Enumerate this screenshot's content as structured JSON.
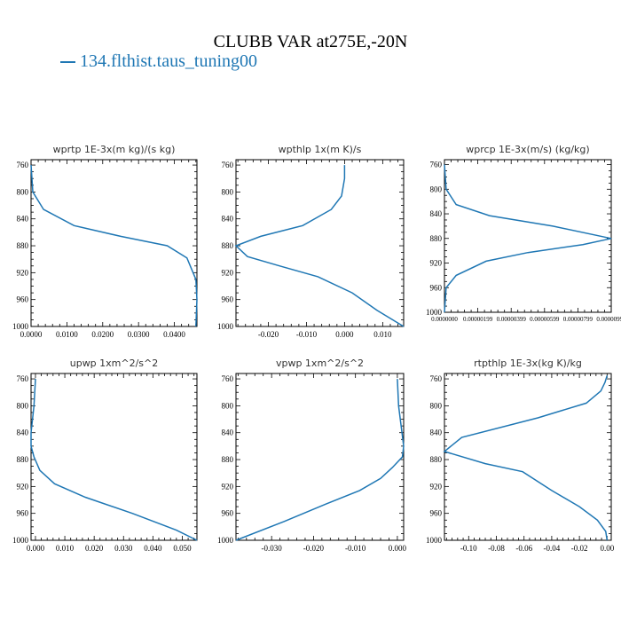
{
  "title": "CLUBB VAR at275E,-20N",
  "legend": {
    "label": "134.flthist.taus_tuning00",
    "color": "#1f77b4"
  },
  "chart_data": [
    {
      "type": "line",
      "title": "wprtp  1E-3x(m kg)/(s kg)",
      "ylim": [
        1000,
        752
      ],
      "y_ticks": [
        760,
        800,
        840,
        880,
        920,
        960,
        1000
      ],
      "y_tick_labels": [
        "760",
        "800",
        "840",
        "880",
        "920",
        "960",
        "1000"
      ],
      "xlim": [
        0.0,
        0.0463
      ],
      "x_ticks": [
        0.0,
        0.01,
        0.02,
        0.03,
        0.04
      ],
      "x_tick_labels": [
        "0.0000",
        "0.0100",
        "0.0200",
        "0.0300",
        "0.0400"
      ],
      "series": [
        {
          "color": "#1f77b4",
          "x": [
            0.0,
            0.0005,
            0.0035,
            0.012,
            0.025,
            0.038,
            0.0435,
            0.046,
            0.0463,
            0.046
          ],
          "y": [
            760,
            800,
            826,
            850,
            866,
            880,
            898,
            930,
            960,
            1000
          ]
        }
      ]
    },
    {
      "type": "line",
      "title": "wpthlp  1x(m K)/s",
      "ylim": [
        1000,
        752
      ],
      "y_ticks": [
        760,
        800,
        840,
        880,
        920,
        960,
        1000
      ],
      "y_tick_labels": [
        "760",
        "800",
        "840",
        "880",
        "920",
        "960",
        "1000"
      ],
      "xlim": [
        -0.0285,
        0.0155
      ],
      "x_ticks": [
        -0.02,
        -0.01,
        0.0,
        0.01
      ],
      "x_tick_labels": [
        "-0.020",
        "-0.010",
        "0.000",
        "0.010"
      ],
      "series": [
        {
          "color": "#1f77b4",
          "x": [
            0.0,
            0.0,
            -0.0008,
            -0.0035,
            -0.011,
            -0.022,
            -0.0285,
            -0.0255,
            -0.017,
            -0.007,
            0.002,
            0.0085,
            0.0155
          ],
          "y": [
            760,
            780,
            806,
            826,
            850,
            866,
            880,
            896,
            910,
            926,
            950,
            976,
            1000
          ]
        }
      ]
    },
    {
      "type": "line",
      "title": "wprcp  1E-3x(m/s) (kg/kg)",
      "ylim": [
        1000,
        752
      ],
      "y_ticks": [
        760,
        800,
        840,
        880,
        920,
        960,
        1000
      ],
      "y_tick_labels": [
        "760",
        "800",
        "840",
        "880",
        "920",
        "960",
        "1000"
      ],
      "xlim": [
        0.0,
        1e-05
      ],
      "x_ticks": [
        0.0,
        2e-06,
        4e-06,
        6e-06,
        8e-06,
        1e-05
      ],
      "x_tick_labels": [
        "0.0000000",
        "0.00000199",
        "0.00000399",
        "0.00000599",
        "0.00000799",
        "0.00000999"
      ],
      "series": [
        {
          "color": "#1f77b4",
          "x": [
            0.0,
            1e-07,
            7e-07,
            2.7e-06,
            6.5e-06,
            1e-05,
            8.3e-06,
            5e-06,
            2.5e-06,
            7e-07,
            1e-07,
            0.0
          ],
          "y": [
            760,
            800,
            825,
            843,
            860,
            880,
            890,
            903,
            917,
            940,
            960,
            1000
          ]
        }
      ]
    },
    {
      "type": "line",
      "title": "upwp  1xm^2/s^2",
      "ylim": [
        1000,
        752
      ],
      "y_ticks": [
        760,
        800,
        840,
        880,
        920,
        960,
        1000
      ],
      "y_tick_labels": [
        "760",
        "800",
        "840",
        "880",
        "920",
        "960",
        "1000"
      ],
      "xlim": [
        -0.0015,
        0.055
      ],
      "x_ticks": [
        0.0,
        0.01,
        0.02,
        0.03,
        0.04,
        0.05
      ],
      "x_tick_labels": [
        "0.000",
        "0.010",
        "0.020",
        "0.030",
        "0.040",
        "0.050"
      ],
      "series": [
        {
          "color": "#1f77b4",
          "x": [
            0.0,
            -0.0005,
            -0.0015,
            -0.0015,
            -0.0005,
            0.0015,
            0.0065,
            0.017,
            0.033,
            0.048,
            0.055
          ],
          "y": [
            760,
            800,
            840,
            860,
            876,
            896,
            916,
            936,
            960,
            985,
            1000
          ]
        }
      ]
    },
    {
      "type": "line",
      "title": "vpwp  1xm^2/s^2",
      "ylim": [
        1000,
        752
      ],
      "y_ticks": [
        760,
        800,
        840,
        880,
        920,
        960,
        1000
      ],
      "y_tick_labels": [
        "760",
        "800",
        "840",
        "880",
        "920",
        "960",
        "1000"
      ],
      "xlim": [
        -0.0385,
        0.0015
      ],
      "x_ticks": [
        -0.03,
        -0.02,
        -0.01,
        0.0
      ],
      "x_tick_labels": [
        "-0.030",
        "-0.020",
        "-0.010",
        "0.000"
      ],
      "series": [
        {
          "color": "#1f77b4",
          "x": [
            0.0,
            0.0003,
            0.0011,
            0.0015,
            0.0012,
            -0.0012,
            -0.004,
            -0.009,
            -0.017,
            -0.027,
            -0.0385
          ],
          "y": [
            760,
            800,
            840,
            860,
            876,
            892,
            908,
            926,
            946,
            972,
            1000
          ]
        }
      ]
    },
    {
      "type": "line",
      "title": "rtpthlp  1E-3x(kg K)/kg",
      "ylim": [
        1000,
        752
      ],
      "y_ticks": [
        760,
        800,
        840,
        880,
        920,
        960,
        1000
      ],
      "y_tick_labels": [
        "760",
        "800",
        "840",
        "880",
        "920",
        "960",
        "1000"
      ],
      "xlim": [
        -0.1175,
        0.003
      ],
      "x_ticks": [
        -0.1,
        -0.08,
        -0.06,
        -0.04,
        -0.02,
        0.0
      ],
      "x_tick_labels": [
        "-0.10",
        "-0.08",
        "-0.06",
        "-0.04",
        "-0.02",
        "0.00"
      ],
      "series": [
        {
          "color": "#1f77b4",
          "x": [
            0.0,
            -0.0015,
            -0.0045,
            -0.015,
            -0.05,
            -0.105,
            -0.1175,
            -0.088,
            -0.061,
            -0.04,
            -0.02,
            -0.007,
            -0.001,
            0.0
          ],
          "y": [
            755,
            765,
            778,
            796,
            818,
            847,
            868,
            886,
            898,
            926,
            950,
            970,
            987,
            1000
          ]
        }
      ]
    }
  ]
}
